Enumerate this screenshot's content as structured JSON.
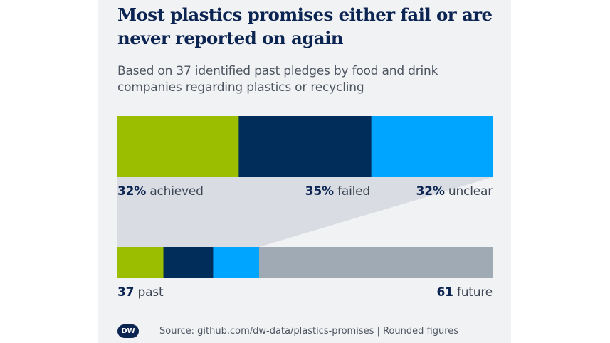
{
  "chart_data": {
    "type": "bar",
    "title": "Most plastics promises either fail or are never reported on again",
    "subtitle": "Based on 37 identified past pledges by food and drink companies regarding plastics or recycling",
    "top_bar": {
      "segments": [
        {
          "value": 32,
          "pct_label": "32%",
          "label": "achieved",
          "color": "#9bbf00"
        },
        {
          "value": 35,
          "pct_label": "35%",
          "label": "failed",
          "color": "#002d5a"
        },
        {
          "value": 32,
          "pct_label": "32%",
          "label": "unclear",
          "color": "#00a5ff"
        }
      ]
    },
    "bottom_bar": {
      "segments": [
        {
          "value": 12,
          "color": "#9bbf00"
        },
        {
          "value": 13,
          "color": "#002d5a"
        },
        {
          "value": 12,
          "color": "#00a5ff"
        },
        {
          "value": 61,
          "color": "#a0aab4"
        }
      ],
      "past": {
        "value": "37",
        "label": "past"
      },
      "future": {
        "value": "61",
        "label": "future"
      }
    },
    "funnel_color": "#d9dde3",
    "source": "Source: github.com/dw-data/plastics-promises | Rounded figures",
    "logo": "DW"
  }
}
